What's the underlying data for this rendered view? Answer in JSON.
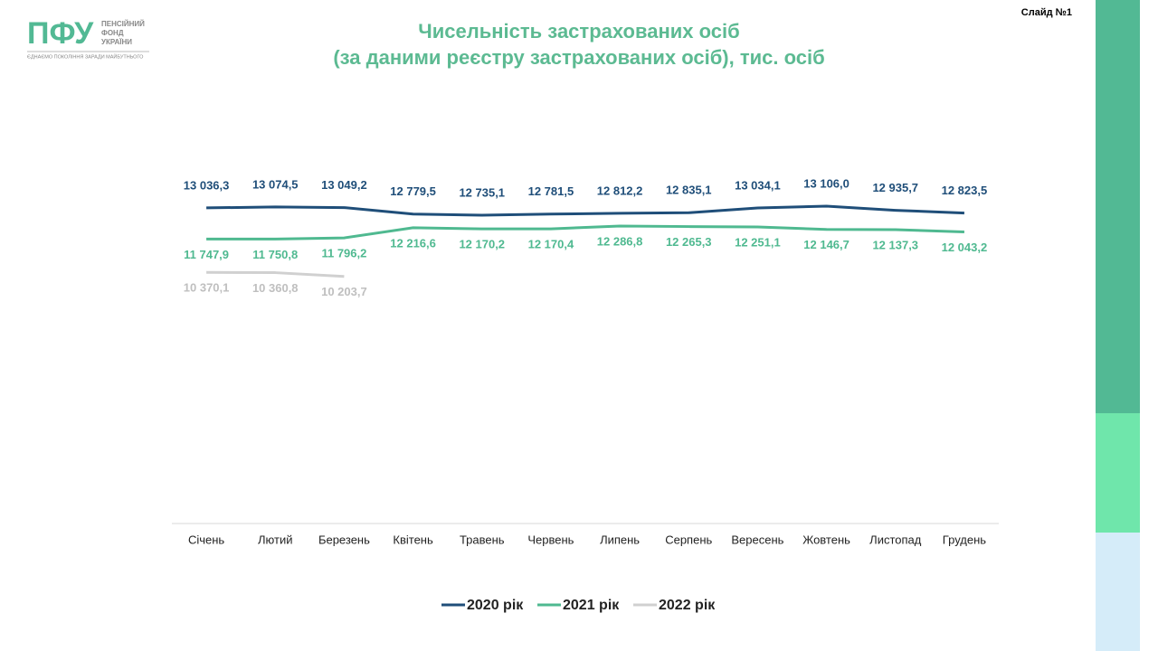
{
  "header": {
    "logo": "ПФУ",
    "org": [
      "ПЕНСІЙНИЙ",
      "ФОНД",
      "УКРАЇНИ"
    ],
    "motto": "ЄДНАЄМО ПОКОЛІННЯ ЗАРАДИ МАЙБУТНЬОГО",
    "slide": "Слайд №1"
  },
  "chart_data": {
    "type": "line",
    "title": "Чисельність застрахованих осіб",
    "subtitle": "(за даними реєстру застрахованих осіб), тис. осіб",
    "categories": [
      "Січень",
      "Лютий",
      "Березень",
      "Квітень",
      "Травень",
      "Червень",
      "Липень",
      "Серпень",
      "Вересень",
      "Жовтень",
      "Листопад",
      "Грудень"
    ],
    "ylim": [
      0,
      18000
    ],
    "legend": "bottom",
    "series": [
      {
        "name": "2020 рік",
        "color": "#1f4e79",
        "values": [
          13036.3,
          13074.5,
          13049.2,
          12779.5,
          12735.1,
          12781.5,
          12812.2,
          12835.1,
          13034.1,
          13106.0,
          12935.7,
          12823.5
        ],
        "value_labels": [
          "13 036,3",
          "13 074,5",
          "13 049,2",
          "12 779,5",
          "12 735,1",
          "12 781,5",
          "12 812,2",
          "12 835,1",
          "13 034,1",
          "13 106,0",
          "12 935,7",
          "12 823,5"
        ]
      },
      {
        "name": "2021 рік",
        "color": "#4fb990",
        "values": [
          11747.9,
          11750.8,
          11796.2,
          12216.6,
          12170.2,
          12170.4,
          12286.8,
          12265.3,
          12251.1,
          12146.7,
          12137.3,
          12043.2
        ],
        "value_labels": [
          "11 747,9",
          "11 750,8",
          "11 796,2",
          "12 216,6",
          "12 170,2",
          "12 170,4",
          "12 286,8",
          "12 265,3",
          "12 251,1",
          "12 146,7",
          "12 137,3",
          "12 043,2"
        ]
      },
      {
        "name": "2022 рік",
        "color": "#d0d0d0",
        "values": [
          10370.1,
          10360.8,
          10203.7,
          null,
          null,
          null,
          null,
          null,
          null,
          null,
          null,
          null
        ],
        "value_labels": [
          "10 370,1",
          "10 360,8",
          "10 203,7",
          null,
          null,
          null,
          null,
          null,
          null,
          null,
          null,
          null
        ]
      }
    ]
  }
}
